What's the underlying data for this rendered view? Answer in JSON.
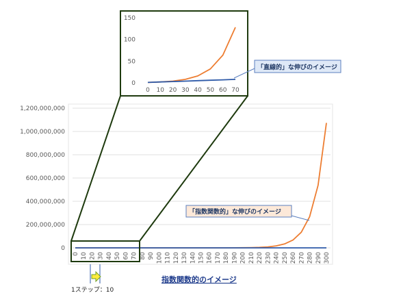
{
  "chart_data": [
    {
      "type": "line",
      "x": [
        0,
        10,
        20,
        30,
        40,
        50,
        60,
        70
      ],
      "series": [
        {
          "values": [
            1,
            2,
            4,
            8,
            16,
            32,
            64,
            128
          ],
          "color": "#ed7d31"
        },
        {
          "values": [
            1,
            2,
            3,
            4,
            5,
            6,
            7,
            8
          ],
          "color": "#2e5aa8"
        }
      ],
      "ylim": [
        0,
        150
      ],
      "yticks": [
        "0",
        "50",
        "100",
        "150"
      ],
      "xticks": [
        "0",
        "10",
        "20",
        "30",
        "40",
        "50",
        "60",
        "70"
      ],
      "grid": false,
      "annotation": "「直線的」な伸びのイメージ"
    },
    {
      "type": "line",
      "x": [
        0,
        10,
        20,
        30,
        40,
        50,
        60,
        70,
        80,
        90,
        100,
        110,
        120,
        130,
        140,
        150,
        160,
        170,
        180,
        190,
        200,
        210,
        220,
        230,
        240,
        250,
        260,
        270,
        280,
        290,
        300
      ],
      "series": [
        {
          "values": [
            1,
            2,
            4,
            8,
            16,
            32,
            64,
            128,
            256,
            512,
            1024,
            2048,
            4096,
            8192,
            16384,
            32768,
            65536,
            131072,
            262144,
            524288,
            1048576,
            2097152,
            4194304,
            8388608,
            16777216,
            33554432,
            67108864,
            134217728,
            268435456,
            536870912,
            1073741824
          ],
          "color": "#ed7d31"
        },
        {
          "values": [
            1,
            2,
            3,
            4,
            5,
            6,
            7,
            8,
            9,
            10,
            11,
            12,
            13,
            14,
            15,
            16,
            17,
            18,
            19,
            20,
            21,
            22,
            23,
            24,
            25,
            26,
            27,
            28,
            29,
            30,
            31
          ],
          "color": "#2e5aa8"
        }
      ],
      "ylim": [
        0,
        1200000000
      ],
      "yticks": [
        "0",
        "200,000,000",
        "400,000,000",
        "600,000,000",
        "800,000,000",
        "1,000,000,000",
        "1,200,000,000"
      ],
      "xticks": [
        "0",
        "10",
        "20",
        "30",
        "40",
        "50",
        "60",
        "70",
        "80",
        "90",
        "100",
        "110",
        "120",
        "130",
        "140",
        "150",
        "160",
        "170",
        "180",
        "190",
        "200",
        "210",
        "220",
        "230",
        "240",
        "250",
        "260",
        "270",
        "280",
        "290",
        "300"
      ],
      "grid": true,
      "annotation": "「指数関数的」な伸びのイメージ"
    }
  ],
  "labels": {
    "main_title": "指数関数的のイメージ",
    "step_text": "1ステップ：10"
  },
  "colors": {
    "zoom_frame": "#1e3a0e",
    "callout_border": "#5b7fbf",
    "callout_fill": "#dfe9f7",
    "arrow_fill": "#ffeb3b",
    "arrow_stroke": "#6fa02a"
  }
}
